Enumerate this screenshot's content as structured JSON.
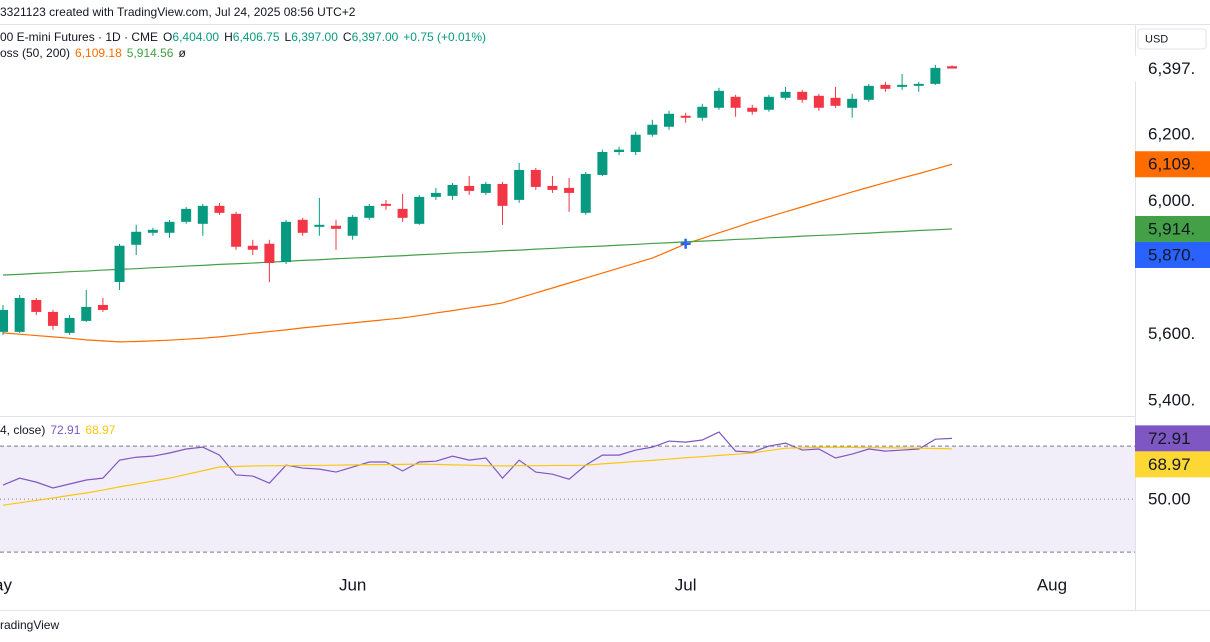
{
  "header": {
    "text": "3321123 created with TradingView.com, Jul 24, 2025 08:56 UTC+2"
  },
  "footer": {
    "text": "radingView"
  },
  "currency": "USD",
  "chart_data": [
    {
      "type": "candlestick",
      "legend": {
        "title": "00 E-mini Futures · 1D · CME",
        "ohlc": [
          {
            "key": "O",
            "value": "6,404.00"
          },
          {
            "key": "H",
            "value": "6,406.75"
          },
          {
            "key": "L",
            "value": "6,397.00"
          },
          {
            "key": "C",
            "value": "6,397.00"
          },
          {
            "value": "+0.75 (+0.01%)"
          }
        ],
        "ma_title": "oss (50, 200)",
        "ma_suffix": "ø"
      },
      "categories": [
        "ay",
        null,
        null,
        null,
        null,
        null,
        null,
        null,
        null,
        null,
        null,
        null,
        null,
        null,
        null,
        null,
        null,
        null,
        null,
        null,
        null,
        "Jun",
        null,
        null,
        null,
        null,
        null,
        null,
        null,
        null,
        null,
        null,
        null,
        null,
        null,
        null,
        null,
        null,
        null,
        null,
        null,
        "Jul",
        null,
        null,
        null,
        null,
        null,
        null,
        null,
        null,
        null,
        null,
        null,
        null,
        null,
        null,
        null,
        null,
        null,
        null,
        null,
        null,
        null,
        "Aug"
      ],
      "open": [
        5605,
        5605,
        5701,
        5665,
        5602,
        5638,
        5686,
        5755,
        5867,
        5903,
        5903,
        5936,
        5930,
        5984,
        5960,
        5864,
        5870,
        5815,
        5942,
        5921,
        5924,
        5894,
        5948,
        5990,
        5975,
        5930,
        6011,
        6014,
        6044,
        6023,
        6050,
        6002,
        6092,
        6044,
        6038,
        5963,
        6077,
        6146,
        6146,
        6198,
        6222,
        6255,
        6249,
        6279,
        6312,
        6279,
        6273,
        6309,
        6327,
        6315,
        6309,
        6279,
        6303,
        6348,
        6342,
        6345,
        6351,
        6404,
        null,
        null,
        null,
        null,
        null,
        null
      ],
      "high": [
        5686,
        5716,
        5707,
        5671,
        5656,
        5731,
        5707,
        5870,
        5927,
        5918,
        5942,
        5981,
        5990,
        5993,
        5966,
        5882,
        5882,
        5942,
        5948,
        6008,
        5942,
        5957,
        5990,
        6002,
        6020,
        6017,
        6038,
        6053,
        6074,
        6056,
        6056,
        6113,
        6098,
        6074,
        6068,
        6086,
        6153,
        6162,
        6207,
        6243,
        6270,
        6264,
        6291,
        6339,
        6318,
        6288,
        6318,
        6342,
        6333,
        6321,
        6342,
        6321,
        6351,
        6357,
        6381,
        6357,
        6408,
        6406.75,
        null,
        null,
        null,
        null,
        null,
        null
      ],
      "low": [
        5596,
        5602,
        5656,
        5611,
        5596,
        5635,
        5665,
        5731,
        5836,
        5894,
        5888,
        5930,
        5894,
        5957,
        5852,
        5836,
        5755,
        5809,
        5894,
        5894,
        5852,
        5882,
        5942,
        5972,
        5936,
        5927,
        6002,
        6002,
        6017,
        6017,
        5927,
        5993,
        6032,
        6023,
        5966,
        5957,
        6074,
        6137,
        6137,
        6192,
        6213,
        6234,
        6240,
        6273,
        6252,
        6258,
        6267,
        6303,
        6294,
        6270,
        6279,
        6249,
        6297,
        6327,
        6333,
        6327,
        6348,
        6397,
        null,
        null,
        null,
        null,
        null,
        null
      ],
      "close": [
        5671,
        5707,
        5665,
        5623,
        5647,
        5680,
        5671,
        5864,
        5906,
        5912,
        5936,
        5975,
        5984,
        5963,
        5861,
        5852,
        5812,
        5936,
        5903,
        5927,
        5915,
        5951,
        5984,
        5984,
        5948,
        6011,
        6023,
        6047,
        6029,
        6050,
        5984,
        6092,
        6041,
        6032,
        6023,
        6080,
        6146,
        6153,
        6198,
        6228,
        6261,
        6249,
        6282,
        6330,
        6279,
        6267,
        6312,
        6327,
        6303,
        6279,
        6285,
        6306,
        6345,
        6336,
        6348,
        6351,
        6399,
        6397,
        null,
        null,
        null,
        null,
        null,
        null
      ],
      "up_color": "#089981",
      "down_color": "#f23645",
      "series": [
        {
          "color": "#ff6d00",
          "last_label": "6,109.18",
          "values": [
            5602,
            5598,
            5594,
            5590,
            5586,
            5581,
            5578,
            5575,
            5576,
            5578,
            5580,
            5583,
            5586,
            5590,
            5595,
            5601,
            5606,
            5611,
            5617,
            5622,
            5627,
            5632,
            5637,
            5642,
            5647,
            5654,
            5662,
            5669,
            5677,
            5684,
            5692,
            5707,
            5722,
            5737,
            5752,
            5767,
            5782,
            5797,
            5812,
            5827,
            5848,
            5870,
            5886,
            5903,
            5919,
            5936,
            5951,
            5966,
            5981,
            5996,
            6011,
            6026,
            6040,
            6054,
            6068,
            6081,
            6095,
            6109.18,
            null,
            null,
            null,
            null,
            null,
            null
          ]
        },
        {
          "color": "#43a047",
          "last_label": "5,914.56",
          "values": [
            5776,
            5778,
            5781,
            5783,
            5786,
            5788,
            5791,
            5793,
            5795,
            5798,
            5800,
            5803,
            5805,
            5808,
            5810,
            5812,
            5815,
            5817,
            5820,
            5822,
            5825,
            5827,
            5829,
            5832,
            5834,
            5837,
            5839,
            5842,
            5844,
            5846,
            5849,
            5851,
            5854,
            5856,
            5859,
            5861,
            5863,
            5866,
            5868,
            5871,
            5873,
            5876,
            5878,
            5880,
            5883,
            5885,
            5888,
            5890,
            5893,
            5895,
            5897,
            5900,
            5902,
            5905,
            5907,
            5910,
            5912,
            5914.56,
            null,
            null,
            null,
            null,
            null,
            null
          ]
        }
      ],
      "cross": {
        "index": 41,
        "value": 5870,
        "color": "#2962ff"
      },
      "ylim": [
        5355,
        6528
      ],
      "yticks": [
        {
          "value": 5400,
          "label": "5,400."
        },
        {
          "value": 5600,
          "label": "5,600."
        },
        {
          "value": 6000,
          "label": "6,000."
        },
        {
          "value": 6200,
          "label": "6,200."
        }
      ],
      "price_labels": [
        {
          "value": 6397,
          "label": "6,397.",
          "bg": "#ffffff",
          "fg": "#131722"
        },
        {
          "value": 6109.18,
          "label": "6,109.",
          "bg": "#ff6d00",
          "fg": "#ffffff"
        },
        {
          "value": 5914.56,
          "label": "5,914.",
          "bg": "#43a047",
          "fg": "#ffffff"
        },
        {
          "value": 5870,
          "label": "5,870.",
          "bg": "#2962ff",
          "fg": "#ffffff"
        }
      ],
      "grid": false
    },
    {
      "type": "line",
      "legend": {
        "title": "4, close)"
      },
      "series": [
        {
          "color": "#7e57c2",
          "last_label": "72.91",
          "values": [
            55.3,
            57.9,
            56.4,
            54.2,
            55.7,
            57.2,
            57.9,
            64.7,
            65.8,
            66.2,
            67.4,
            68.9,
            69.6,
            66.6,
            59.1,
            58.7,
            56.0,
            62.8,
            61.7,
            61.3,
            60.2,
            62.1,
            64.0,
            64.0,
            60.6,
            64.0,
            64.3,
            66.2,
            64.7,
            65.5,
            57.9,
            64.7,
            60.2,
            59.4,
            57.5,
            62.8,
            66.6,
            66.6,
            68.5,
            69.6,
            71.9,
            71.5,
            72.3,
            75.3,
            68.1,
            67.7,
            70.0,
            71.1,
            68.5,
            68.9,
            65.5,
            67.0,
            68.9,
            68.1,
            68.5,
            68.9,
            72.6,
            72.91
          ]
        },
        {
          "color": "#f9c80e",
          "last_label": "68.97",
          "values": [
            47.7,
            48.6,
            49.5,
            50.4,
            51.4,
            52.3,
            53.4,
            54.6,
            55.7,
            56.8,
            57.9,
            59.3,
            60.7,
            62.1,
            62.3,
            62.5,
            62.6,
            62.6,
            62.7,
            62.7,
            62.8,
            62.9,
            63.0,
            63.0,
            63.1,
            63.2,
            63.1,
            62.9,
            62.8,
            62.6,
            62.5,
            62.6,
            62.6,
            62.7,
            62.7,
            62.8,
            63.3,
            63.7,
            64.2,
            64.6,
            65.1,
            65.6,
            66.0,
            66.5,
            66.9,
            67.4,
            68.3,
            69.2,
            69.3,
            69.5,
            69.6,
            69.5,
            69.4,
            69.4,
            69.3,
            69.2,
            69.1,
            68.97
          ]
        }
      ],
      "ylim": [
        28.9,
        80.6
      ],
      "yticks": [
        {
          "value": 50,
          "label": "50.00"
        }
      ],
      "levels": [
        70,
        50,
        30
      ],
      "band": [
        30,
        70
      ],
      "band_color": "#7e57c2",
      "price_labels": [
        {
          "value": 72.91,
          "label": "72.91",
          "bg": "#7e57c2",
          "fg": "#ffffff"
        },
        {
          "value": 68.97,
          "label": "68.97",
          "bg": "#fdd835",
          "fg": "#131722"
        }
      ],
      "grid": false
    }
  ]
}
